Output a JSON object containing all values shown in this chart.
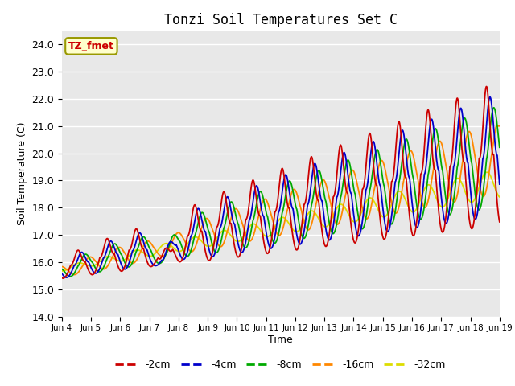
{
  "title": "Tonzi Soil Temperatures Set C",
  "xlabel": "Time",
  "ylabel": "Soil Temperature (C)",
  "ylim": [
    14.0,
    24.5
  ],
  "yticks": [
    14.0,
    15.0,
    16.0,
    17.0,
    18.0,
    19.0,
    20.0,
    21.0,
    22.0,
    23.0,
    24.0
  ],
  "series": {
    "-2cm": {
      "color": "#cc0000",
      "lw": 1.3
    },
    "-4cm": {
      "color": "#0000cc",
      "lw": 1.3
    },
    "-8cm": {
      "color": "#00aa00",
      "lw": 1.3
    },
    "-16cm": {
      "color": "#ff8800",
      "lw": 1.3
    },
    "-32cm": {
      "color": "#dddd00",
      "lw": 1.3
    }
  },
  "legend_label": "TZ_fmet",
  "bg_color": "#e8e8e8",
  "grid_color": "#ffffff",
  "xtick_labels": [
    "Jun 4",
    "Jun 5",
    "Jun 6",
    "Jun 7",
    "Jun 8",
    "Jun 9",
    "Jun 10",
    "Jun 11",
    "Jun 12",
    "Jun 13",
    "Jun 14",
    "Jun 15",
    "Jun 16",
    "Jun 17",
    "Jun 18",
    "Jun 19"
  ]
}
